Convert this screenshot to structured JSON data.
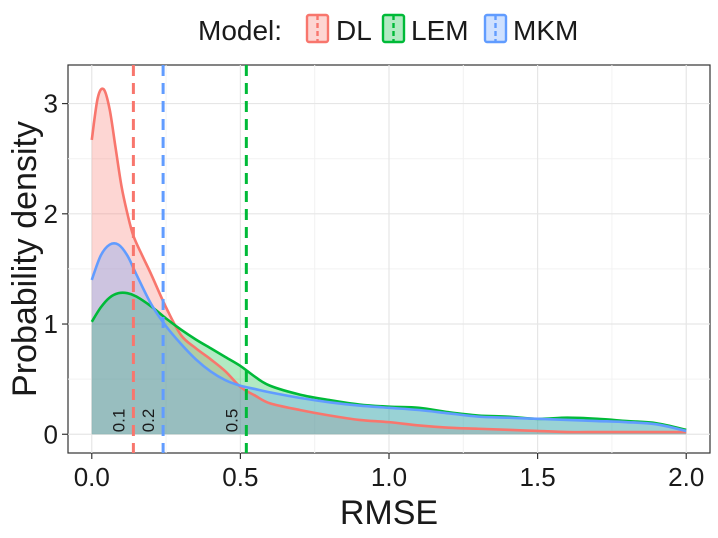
{
  "chart_data": {
    "type": "area",
    "title": "",
    "xlabel": "RMSE",
    "ylabel": "Probability density",
    "xlim": [
      -0.08,
      2.08
    ],
    "ylim": [
      -0.17,
      3.35
    ],
    "grid": true,
    "legend": {
      "title": "Model:",
      "placement": "top",
      "entries": [
        "DL",
        "LEM",
        "MKM"
      ]
    },
    "x_ticks": [
      0.0,
      0.5,
      1.0,
      1.5,
      2.0
    ],
    "x_tick_labels": [
      "0.0",
      "0.5",
      "1.0",
      "1.5",
      "2.0"
    ],
    "y_ticks": [
      0,
      1,
      2,
      3
    ],
    "y_tick_labels": [
      "0",
      "1",
      "2",
      "3"
    ],
    "series": [
      {
        "name": "DL",
        "color": "#F8766D",
        "fill": "#FBC3BD",
        "x": [
          0.0,
          0.02,
          0.04,
          0.06,
          0.08,
          0.1,
          0.12,
          0.14,
          0.17,
          0.2,
          0.25,
          0.3,
          0.35,
          0.4,
          0.45,
          0.5,
          0.55,
          0.6,
          0.7,
          0.8,
          0.9,
          1.0,
          1.1,
          1.2,
          1.3,
          1.4,
          1.5,
          1.6,
          1.7,
          1.8,
          1.9,
          2.0
        ],
        "y": [
          2.67,
          3.05,
          3.13,
          2.95,
          2.6,
          2.25,
          2.0,
          1.8,
          1.62,
          1.45,
          1.15,
          0.9,
          0.78,
          0.68,
          0.57,
          0.43,
          0.35,
          0.28,
          0.22,
          0.17,
          0.13,
          0.11,
          0.08,
          0.06,
          0.05,
          0.04,
          0.03,
          0.02,
          0.02,
          0.02,
          0.02,
          0.02
        ]
      },
      {
        "name": "LEM",
        "color": "#00BA38",
        "fill": "#B3EAC3",
        "x": [
          0.0,
          0.03,
          0.06,
          0.09,
          0.12,
          0.15,
          0.2,
          0.25,
          0.3,
          0.35,
          0.4,
          0.45,
          0.5,
          0.55,
          0.6,
          0.7,
          0.8,
          0.9,
          1.0,
          1.1,
          1.2,
          1.3,
          1.4,
          1.5,
          1.6,
          1.7,
          1.8,
          1.9,
          2.0
        ],
        "y": [
          1.02,
          1.15,
          1.24,
          1.28,
          1.28,
          1.25,
          1.16,
          1.05,
          0.95,
          0.86,
          0.78,
          0.7,
          0.62,
          0.52,
          0.44,
          0.36,
          0.31,
          0.27,
          0.25,
          0.24,
          0.2,
          0.17,
          0.16,
          0.14,
          0.15,
          0.14,
          0.12,
          0.1,
          0.04
        ]
      },
      {
        "name": "MKM",
        "color": "#619CFF",
        "fill": "#C9DBFF",
        "x": [
          0.0,
          0.03,
          0.06,
          0.09,
          0.12,
          0.15,
          0.2,
          0.25,
          0.3,
          0.35,
          0.4,
          0.45,
          0.5,
          0.55,
          0.6,
          0.7,
          0.8,
          0.9,
          1.0,
          1.1,
          1.2,
          1.3,
          1.4,
          1.5,
          1.6,
          1.7,
          1.8,
          1.9,
          2.0
        ],
        "y": [
          1.4,
          1.62,
          1.72,
          1.72,
          1.62,
          1.45,
          1.18,
          0.98,
          0.82,
          0.68,
          0.57,
          0.49,
          0.44,
          0.41,
          0.38,
          0.33,
          0.29,
          0.26,
          0.24,
          0.22,
          0.19,
          0.16,
          0.15,
          0.14,
          0.13,
          0.12,
          0.11,
          0.09,
          0.03
        ]
      }
    ],
    "reference_lines": [
      {
        "series": "DL",
        "x": 0.14,
        "label": "0.1"
      },
      {
        "series": "MKM",
        "x": 0.24,
        "label": "0.2"
      },
      {
        "series": "LEM",
        "x": 0.52,
        "label": "0.5"
      }
    ]
  }
}
